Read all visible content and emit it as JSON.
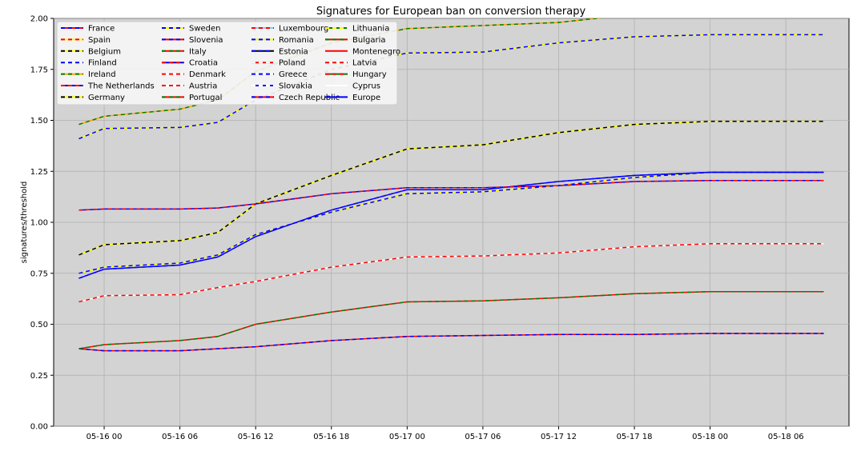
{
  "chart_data": {
    "type": "line",
    "title": "Signatures for European ban on conversion therapy",
    "ylabel": "signatures/threshold",
    "xlabel": "",
    "ylim": [
      0,
      2.0
    ],
    "xlim": [
      "05-15 20",
      "05-18 11"
    ],
    "xticks": [
      "05-16 00",
      "05-16 06",
      "05-16 12",
      "05-16 18",
      "05-17 00",
      "05-17 06",
      "05-17 12",
      "05-17 18",
      "05-18 00",
      "05-18 06"
    ],
    "yticks": [
      0.0,
      0.25,
      0.5,
      0.75,
      1.0,
      1.25,
      1.5,
      1.75,
      2.0
    ],
    "grid": true,
    "background": "#d3d3d3",
    "legend_position": "top-left",
    "legend": [
      {
        "name": "France",
        "colors": [
          "#0000ff",
          "#ff0000"
        ]
      },
      {
        "name": "Spain",
        "colors": [
          "#ff0000",
          "#ffff00"
        ]
      },
      {
        "name": "Belgium",
        "colors": [
          "#000000",
          "#ffff00"
        ]
      },
      {
        "name": "Finland",
        "colors": [
          "#0000ff",
          "#ffffff"
        ]
      },
      {
        "name": "Ireland",
        "colors": [
          "#008000",
          "#ffa500"
        ]
      },
      {
        "name": "The Netherlands",
        "colors": [
          "#ff0000",
          "#0000ff"
        ]
      },
      {
        "name": "Germany",
        "colors": [
          "#000000",
          "#ffff00"
        ]
      },
      {
        "name": "Sweden",
        "colors": [
          "#0000ff",
          "#ffff00"
        ]
      },
      {
        "name": "Slovenia",
        "colors": [
          "#0000ff",
          "#ff0000"
        ]
      },
      {
        "name": "Italy",
        "colors": [
          "#008000",
          "#ff0000"
        ]
      },
      {
        "name": "Croatia",
        "colors": [
          "#ff0000",
          "#0000ff"
        ]
      },
      {
        "name": "Denmark",
        "colors": [
          "#ff0000",
          "#ffffff"
        ]
      },
      {
        "name": "Austria",
        "colors": [
          "#ff0000",
          "#ffffff"
        ]
      },
      {
        "name": "Portugal",
        "colors": [
          "#008000",
          "#ff0000"
        ]
      },
      {
        "name": "Luxembourg",
        "colors": [
          "#ff0000",
          "#87ceeb"
        ]
      },
      {
        "name": "Romania",
        "colors": [
          "#0000ff",
          "#ffff00"
        ]
      },
      {
        "name": "Estonia",
        "colors": [
          "#0000ff",
          "#000000"
        ]
      },
      {
        "name": "Poland",
        "colors": [
          "#ffffff",
          "#ff0000"
        ]
      },
      {
        "name": "Greece",
        "colors": [
          "#0000ff",
          "#ffffff"
        ]
      },
      {
        "name": "Slovakia",
        "colors": [
          "#ffffff",
          "#0000ff"
        ]
      },
      {
        "name": "Czech Republic",
        "colors": [
          "#0000ff",
          "#ff0000"
        ]
      },
      {
        "name": "Lithuania",
        "colors": [
          "#ffff00",
          "#008000"
        ]
      },
      {
        "name": "Bulgaria",
        "colors": [
          "#008000",
          "#ff0000"
        ]
      },
      {
        "name": "Montenegro",
        "colors": [
          "#ff0000",
          "#ff0000"
        ]
      },
      {
        "name": "Latvia",
        "colors": [
          "#ff0000",
          "#ffffff"
        ]
      },
      {
        "name": "Hungary",
        "colors": [
          "#ff0000",
          "#008000"
        ]
      },
      {
        "name": "Cyprus",
        "colors": [
          "#ffffff",
          "#ffffff"
        ]
      },
      {
        "name": "Europe",
        "colors": [
          "#0000ff",
          "#0000ff"
        ]
      }
    ],
    "x": [
      "05-15 22",
      "05-16 00",
      "05-16 06",
      "05-16 09",
      "05-16 12",
      "05-16 18",
      "05-17 00",
      "05-17 06",
      "05-17 12",
      "05-17 18",
      "05-18 00",
      "05-18 09"
    ],
    "series": [
      {
        "name": "Germany",
        "colors": [
          "#000000",
          "#ffff00"
        ],
        "values": [
          0.84,
          0.89,
          0.91,
          0.95,
          1.09,
          1.23,
          1.36,
          1.38,
          1.44,
          1.48,
          1.495,
          1.495
        ]
      },
      {
        "name": "Sweden",
        "colors": [
          "#0000ff",
          "#ffff00"
        ],
        "values": [
          0.75,
          0.78,
          0.8,
          0.84,
          0.94,
          1.05,
          1.14,
          1.15,
          1.18,
          1.22,
          1.245,
          1.245
        ]
      },
      {
        "name": "Europe",
        "colors": [
          "#0000ff",
          "#0000ff"
        ],
        "values": [
          0.725,
          0.77,
          0.79,
          0.83,
          0.93,
          1.06,
          1.16,
          1.16,
          1.2,
          1.23,
          1.245,
          1.245
        ]
      },
      {
        "name": "France",
        "colors": [
          "#0000ff",
          "#ff0000"
        ],
        "values": [
          0.38,
          0.37,
          0.37,
          0.38,
          0.39,
          0.42,
          0.44,
          0.445,
          0.45,
          0.45,
          0.455,
          0.455
        ]
      },
      {
        "name": "Ireland",
        "colors": [
          "#008000",
          "#ffa500"
        ],
        "values": [
          1.48,
          1.52,
          1.555,
          1.6,
          1.74,
          1.88,
          1.95,
          1.965,
          1.98,
          2.02,
          2.04,
          2.04
        ]
      },
      {
        "name": "The Netherlands",
        "colors": [
          "#ff0000",
          "#0000ff"
        ],
        "values": [
          1.06,
          1.065,
          1.065,
          1.07,
          1.09,
          1.14,
          1.17,
          1.17,
          1.18,
          1.2,
          1.205,
          1.205
        ]
      },
      {
        "name": "Italy",
        "colors": [
          "#008000",
          "#ff0000"
        ],
        "values": [
          0.38,
          0.4,
          0.42,
          0.44,
          0.5,
          0.56,
          0.61,
          0.615,
          0.63,
          0.65,
          0.66,
          0.66
        ]
      },
      {
        "name": "Romania",
        "colors": [
          "#0000ff",
          "#ffff00"
        ],
        "values": [
          1.41,
          1.46,
          1.465,
          1.49,
          1.6,
          1.75,
          1.83,
          1.835,
          1.88,
          1.91,
          1.92,
          1.92
        ]
      },
      {
        "name": "Latvia",
        "colors": [
          "#ff0000",
          "#ffffff"
        ],
        "values": [
          0.61,
          0.64,
          0.645,
          0.68,
          0.71,
          0.78,
          0.83,
          0.835,
          0.85,
          0.88,
          0.895,
          0.895
        ]
      }
    ]
  }
}
